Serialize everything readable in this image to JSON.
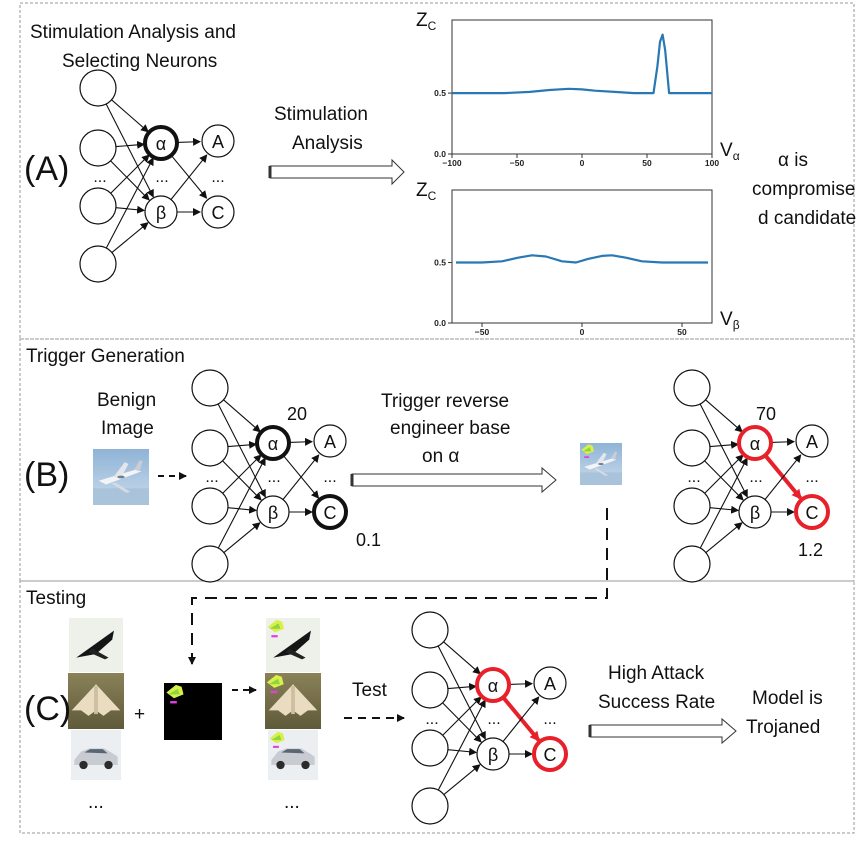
{
  "colors": {
    "curve": "#2878b5",
    "highlight": "#e8202a",
    "dash": "#888888",
    "node": "#111111"
  },
  "panel_a": {
    "label": "(A)",
    "title_line1": "Stimulation Analysis and",
    "title_line2": "Selecting Neurons",
    "arrow_line1": "Stimulation",
    "arrow_line2": "Analysis",
    "note_line1": "α is",
    "note_line2": "compromise",
    "note_line3": "d candidate"
  },
  "network": {
    "neuron_alpha": "α",
    "neuron_beta": "β",
    "neuron_a": "A",
    "neuron_c": "C",
    "ellipsis": "..."
  },
  "panel_b": {
    "label": "(B)",
    "title": "Trigger Generation",
    "benign_line1": "Benign",
    "benign_line2": "Image",
    "arrow_line1": "Trigger reverse",
    "arrow_line2": "engineer base",
    "arrow_line3": "on α",
    "before_alpha_value": "20",
    "before_c_value": "0.1",
    "after_alpha_value": "70",
    "after_c_value": "1.2"
  },
  "panel_c": {
    "label": "(C)",
    "title": "Testing",
    "plus": "+",
    "ellipsis": "...",
    "test_label": "Test",
    "arrow_line1": "High Attack",
    "arrow_line2": "Success Rate",
    "result_line1": "Model is",
    "result_line2": "Trojaned"
  },
  "chart_data": [
    {
      "type": "line",
      "title": "",
      "ylabel": "Z",
      "ylabel_sub": "C",
      "xlabel": "V",
      "xlabel_sub": "α",
      "xlim": [
        -100,
        100
      ],
      "ylim": [
        0,
        1.1
      ],
      "x_ticks": [
        -100,
        -50,
        0,
        50,
        100
      ],
      "y_ticks": [
        0.0,
        0.5
      ],
      "x_tick_labels": [
        "−100",
        "−50",
        "0",
        "50",
        "100"
      ],
      "y_tick_labels": [
        "0.0",
        "0.5"
      ],
      "grid": false,
      "series": [
        {
          "x": [
            -100,
            -80,
            -60,
            -40,
            -25,
            -10,
            0,
            10,
            25,
            40,
            50,
            55,
            58,
            60,
            62,
            64,
            67,
            72,
            80,
            90,
            100
          ],
          "values": [
            0.5,
            0.5,
            0.5,
            0.51,
            0.525,
            0.535,
            0.53,
            0.52,
            0.51,
            0.5,
            0.5,
            0.5,
            0.72,
            0.92,
            0.98,
            0.85,
            0.5,
            0.5,
            0.5,
            0.5,
            0.5
          ]
        }
      ]
    },
    {
      "type": "line",
      "title": "",
      "ylabel": "Z",
      "ylabel_sub": "C",
      "xlabel": "V",
      "xlabel_sub": "β",
      "xlim": [
        -65,
        65
      ],
      "ylim": [
        0,
        1.1
      ],
      "x_ticks": [
        -50,
        0,
        50
      ],
      "y_ticks": [
        0.0,
        0.5
      ],
      "x_tick_labels": [
        "−50",
        "0",
        "50"
      ],
      "y_tick_labels": [
        "0.0",
        "0.5"
      ],
      "grid": false,
      "series": [
        {
          "x": [
            -63,
            -50,
            -40,
            -32,
            -25,
            -18,
            -10,
            -3,
            3,
            10,
            15,
            22,
            30,
            40,
            50,
            63
          ],
          "values": [
            0.5,
            0.5,
            0.51,
            0.54,
            0.56,
            0.55,
            0.51,
            0.5,
            0.53,
            0.555,
            0.56,
            0.54,
            0.51,
            0.5,
            0.5,
            0.5
          ]
        }
      ]
    }
  ]
}
